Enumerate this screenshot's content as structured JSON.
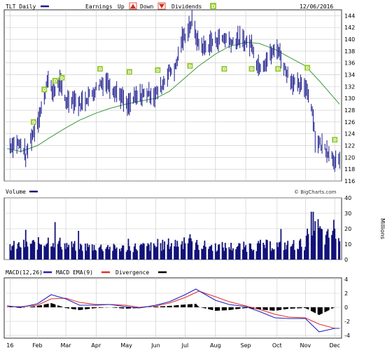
{
  "chart_data": [
    {
      "type": "ohlc",
      "title": "TLT Daily",
      "date": "12/06/2016",
      "legend": {
        "earnings_label": "Earnings",
        "up_label": "Up",
        "down_label": "Down",
        "dividends_label": "Dividends",
        "up_marker": "triangle-up",
        "down_marker": "triangle-down",
        "dividend_marker": "D"
      },
      "colors": {
        "price": "#1a1a8c",
        "moving_average": "#3a9a3a",
        "dividend": "#99cc33"
      },
      "y_ticks": [
        116,
        118,
        120,
        122,
        124,
        126,
        128,
        130,
        132,
        134,
        136,
        138,
        140,
        142,
        144
      ],
      "ylim": [
        116,
        145
      ],
      "grid": true,
      "x_tick_labels": [
        "16",
        "Feb",
        "Mar",
        "Apr",
        "May",
        "Jun",
        "Jul",
        "Aug",
        "Sep",
        "Oct",
        "Nov",
        "Dec"
      ],
      "price_path": [
        [
          "2016-01-04",
          122.0
        ],
        [
          "2016-01-11",
          122.5
        ],
        [
          "2016-01-18",
          121.5
        ],
        [
          "2016-01-20",
          120.0
        ],
        [
          "2016-01-25",
          123.0
        ],
        [
          "2016-02-01",
          126.0
        ],
        [
          "2016-02-08",
          130.0
        ],
        [
          "2016-02-11",
          133.5
        ],
        [
          "2016-02-16",
          131.0
        ],
        [
          "2016-02-24",
          132.5
        ],
        [
          "2016-03-01",
          129.5
        ],
        [
          "2016-03-08",
          130.0
        ],
        [
          "2016-03-15",
          129.0
        ],
        [
          "2016-03-22",
          130.0
        ],
        [
          "2016-03-29",
          131.0
        ],
        [
          "2016-04-05",
          132.5
        ],
        [
          "2016-04-12",
          132.8
        ],
        [
          "2016-04-19",
          131.5
        ],
        [
          "2016-04-26",
          130.5
        ],
        [
          "2016-05-03",
          128.5
        ],
        [
          "2016-05-10",
          130.0
        ],
        [
          "2016-05-17",
          130.5
        ],
        [
          "2016-05-24",
          131.0
        ],
        [
          "2016-05-31",
          130.5
        ],
        [
          "2016-06-07",
          132.0
        ],
        [
          "2016-06-14",
          134.5
        ],
        [
          "2016-06-21",
          135.0
        ],
        [
          "2016-06-27",
          139.5
        ],
        [
          "2016-07-05",
          142.0
        ],
        [
          "2016-07-08",
          143.0
        ],
        [
          "2016-07-14",
          139.5
        ],
        [
          "2016-07-21",
          138.5
        ],
        [
          "2016-07-28",
          139.5
        ],
        [
          "2016-08-04",
          140.0
        ],
        [
          "2016-08-11",
          140.2
        ],
        [
          "2016-08-18",
          139.5
        ],
        [
          "2016-08-25",
          140.0
        ],
        [
          "2016-09-01",
          139.5
        ],
        [
          "2016-09-08",
          139.0
        ],
        [
          "2016-09-13",
          135.5
        ],
        [
          "2016-09-20",
          136.0
        ],
        [
          "2016-09-27",
          137.5
        ],
        [
          "2016-10-04",
          138.5
        ],
        [
          "2016-10-11",
          135.0
        ],
        [
          "2016-10-18",
          133.0
        ],
        [
          "2016-10-25",
          132.0
        ],
        [
          "2016-11-01",
          132.0
        ],
        [
          "2016-11-04",
          131.0
        ],
        [
          "2016-11-09",
          127.0
        ],
        [
          "2016-11-11",
          123.0
        ],
        [
          "2016-11-18",
          122.0
        ],
        [
          "2016-11-25",
          121.0
        ],
        [
          "2016-12-01",
          119.5
        ],
        [
          "2016-12-06",
          119.0
        ]
      ],
      "moving_average": [
        [
          "2016-01-01",
          121.5
        ],
        [
          "2016-01-15",
          121.0
        ],
        [
          "2016-02-01",
          122.0
        ],
        [
          "2016-02-15",
          123.5
        ],
        [
          "2016-03-01",
          125.0
        ],
        [
          "2016-03-15",
          126.3
        ],
        [
          "2016-04-01",
          127.5
        ],
        [
          "2016-04-15",
          128.3
        ],
        [
          "2016-05-01",
          129.0
        ],
        [
          "2016-05-15",
          129.5
        ],
        [
          "2016-06-01",
          130.0
        ],
        [
          "2016-06-15",
          131.2
        ],
        [
          "2016-07-01",
          133.5
        ],
        [
          "2016-07-15",
          135.5
        ],
        [
          "2016-08-01",
          137.5
        ],
        [
          "2016-08-15",
          138.8
        ],
        [
          "2016-09-01",
          139.5
        ],
        [
          "2016-09-15",
          139.3
        ],
        [
          "2016-10-01",
          138.3
        ],
        [
          "2016-10-15",
          137.0
        ],
        [
          "2016-11-01",
          135.5
        ],
        [
          "2016-11-15",
          133.0
        ],
        [
          "2016-12-06",
          129.0
        ]
      ],
      "dividends": [
        [
          "2016-01-28",
          126
        ],
        [
          "2016-02-08",
          131.5
        ],
        [
          "2016-02-19",
          133
        ],
        [
          "2016-02-26",
          133.5
        ],
        [
          "2016-04-05",
          135
        ],
        [
          "2016-05-05",
          134.5
        ],
        [
          "2016-06-03",
          134.8
        ],
        [
          "2016-07-06",
          135.5
        ],
        [
          "2016-08-10",
          135
        ],
        [
          "2016-09-07",
          135
        ],
        [
          "2016-10-04",
          135
        ],
        [
          "2016-11-03",
          135.2
        ],
        [
          "2016-12-01",
          123
        ]
      ]
    },
    {
      "type": "bar",
      "title": "Volume",
      "credit": "© BigCharts.com",
      "y_unit": "Millions",
      "y_ticks": [
        0,
        10,
        20,
        30,
        40
      ],
      "ylim": [
        0,
        40
      ],
      "bar_color": "#12127a",
      "volume_path": [
        [
          "2016-01-01",
          9
        ],
        [
          "2016-01-15",
          10
        ],
        [
          "2016-02-01",
          11
        ],
        [
          "2016-02-15",
          14
        ],
        [
          "2016-02-22",
          12
        ],
        [
          "2016-03-01",
          10
        ],
        [
          "2016-03-15",
          9
        ],
        [
          "2016-04-01",
          9
        ],
        [
          "2016-04-15",
          8
        ],
        [
          "2016-05-01",
          8
        ],
        [
          "2016-05-15",
          9
        ],
        [
          "2016-06-01",
          9
        ],
        [
          "2016-06-15",
          11
        ],
        [
          "2016-07-01",
          12
        ],
        [
          "2016-07-15",
          10
        ],
        [
          "2016-08-01",
          9
        ],
        [
          "2016-08-15",
          9
        ],
        [
          "2016-09-01",
          9
        ],
        [
          "2016-09-15",
          10
        ],
        [
          "2016-10-01",
          10
        ],
        [
          "2016-10-15",
          10
        ],
        [
          "2016-11-01",
          11
        ],
        [
          "2016-11-09",
          30
        ],
        [
          "2016-11-15",
          20
        ],
        [
          "2016-11-22",
          14
        ],
        [
          "2016-12-01",
          22
        ],
        [
          "2016-12-06",
          12
        ]
      ]
    },
    {
      "type": "line",
      "title": "MACD",
      "legend": {
        "macd_label": "MACD(12,26)",
        "ema_label": "MACD EMA(9)",
        "divergence_label": "Divergence"
      },
      "colors": {
        "macd": "#2020c0",
        "ema": "#e03030",
        "divergence": "#000000"
      },
      "y_ticks": [
        -4,
        -2,
        0,
        2,
        4
      ],
      "ylim": [
        -4.4,
        4.2
      ],
      "macd": [
        [
          "2016-01-01",
          0.2
        ],
        [
          "2016-01-15",
          0.0
        ],
        [
          "2016-02-01",
          0.5
        ],
        [
          "2016-02-15",
          1.8
        ],
        [
          "2016-03-01",
          1.2
        ],
        [
          "2016-03-15",
          0.3
        ],
        [
          "2016-04-01",
          0.3
        ],
        [
          "2016-04-15",
          0.4
        ],
        [
          "2016-05-01",
          0.1
        ],
        [
          "2016-05-15",
          -0.1
        ],
        [
          "2016-06-01",
          0.3
        ],
        [
          "2016-06-15",
          0.8
        ],
        [
          "2016-07-01",
          1.8
        ],
        [
          "2016-07-12",
          2.6
        ],
        [
          "2016-08-01",
          1.0
        ],
        [
          "2016-08-15",
          0.4
        ],
        [
          "2016-09-01",
          0.1
        ],
        [
          "2016-09-15",
          -0.6
        ],
        [
          "2016-10-01",
          -1.5
        ],
        [
          "2016-10-15",
          -1.6
        ],
        [
          "2016-11-01",
          -1.6
        ],
        [
          "2016-11-15",
          -3.5
        ],
        [
          "2016-12-01",
          -3.0
        ],
        [
          "2016-12-06",
          -3.0
        ]
      ],
      "ema": [
        [
          "2016-01-01",
          0.1
        ],
        [
          "2016-01-15",
          0.1
        ],
        [
          "2016-02-01",
          0.3
        ],
        [
          "2016-02-15",
          1.2
        ],
        [
          "2016-03-01",
          1.3
        ],
        [
          "2016-03-15",
          0.7
        ],
        [
          "2016-04-01",
          0.4
        ],
        [
          "2016-04-15",
          0.4
        ],
        [
          "2016-05-01",
          0.3
        ],
        [
          "2016-05-15",
          0.0
        ],
        [
          "2016-06-01",
          0.2
        ],
        [
          "2016-06-15",
          0.6
        ],
        [
          "2016-07-01",
          1.4
        ],
        [
          "2016-07-15",
          2.3
        ],
        [
          "2016-08-01",
          1.5
        ],
        [
          "2016-08-15",
          0.8
        ],
        [
          "2016-09-01",
          0.2
        ],
        [
          "2016-09-15",
          -0.3
        ],
        [
          "2016-10-01",
          -1.0
        ],
        [
          "2016-10-15",
          -1.4
        ],
        [
          "2016-11-01",
          -1.5
        ],
        [
          "2016-11-15",
          -2.4
        ],
        [
          "2016-12-01",
          -3.0
        ],
        [
          "2016-12-06",
          -3.0
        ]
      ]
    }
  ]
}
